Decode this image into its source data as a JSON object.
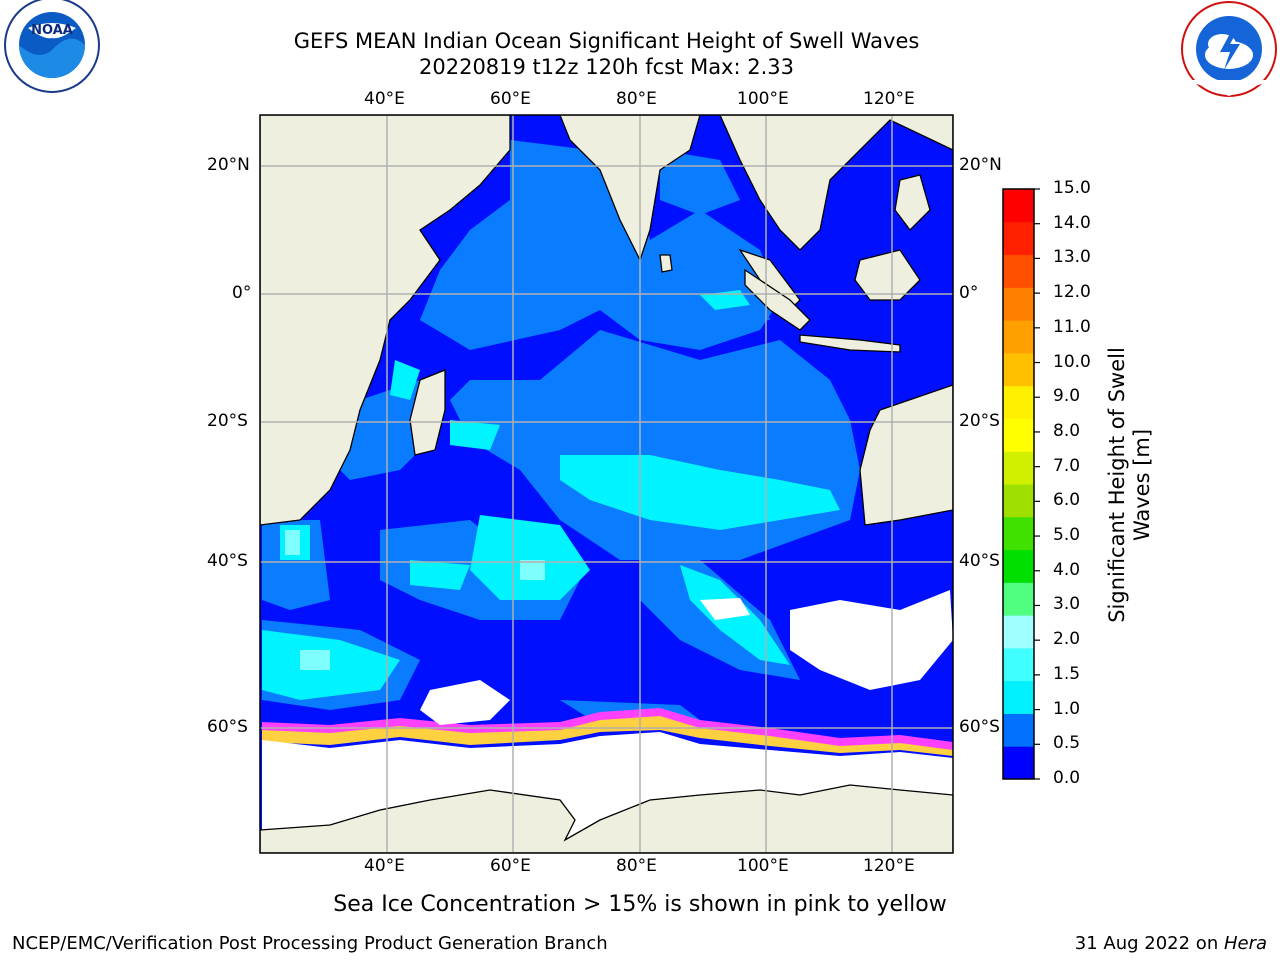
{
  "header": {
    "title_line1": "GEFS MEAN Indian Ocean Significant Height of Swell Waves",
    "title_line2": "20220819 t12z 120h fcst   Max: 2.33"
  },
  "logos": {
    "left": {
      "name": "noaa-logo",
      "text": "NOAA",
      "ring_text": "NATIONAL OCEANIC AND ATMOSPHERIC ADMINISTRATION · U.S. DEPARTMENT OF COMMERCE"
    },
    "right": {
      "name": "nws-logo",
      "ring_text": "NATIONAL WEATHER SERVICE"
    }
  },
  "map": {
    "lon_labels": [
      "40°E",
      "60°E",
      "80°E",
      "100°E",
      "120°E"
    ],
    "lat_labels": [
      "20°N",
      "0°",
      "20°S",
      "40°S",
      "60°S"
    ],
    "colors": {
      "land": "#efefdf",
      "ocean_deep": "#0010ff",
      "ocean_mid": "#0a7cff",
      "swell_high": "#00f4ff",
      "ice_pink": "#ff40ff",
      "ice_yellow": "#ffd040"
    }
  },
  "colorbar": {
    "title_line1": "Significant Height of Swell",
    "title_line2": "Waves [m]",
    "ticks": [
      "15.0",
      "14.0",
      "13.0",
      "12.0",
      "11.0",
      "10.0",
      "9.0",
      "8.0",
      "7.0",
      "6.0",
      "5.0",
      "4.0",
      "3.0",
      "2.0",
      "1.5",
      "1.0",
      "0.5",
      "0.0"
    ],
    "colors": [
      "#0000ff",
      "#0070ff",
      "#00f0ff",
      "#40ffff",
      "#a0ffff",
      "#50ff80",
      "#00e000",
      "#40e000",
      "#a0e000",
      "#d0f000",
      "#ffff00",
      "#fff000",
      "#ffc000",
      "#ffa000",
      "#ff8000",
      "#ff5000",
      "#ff2000",
      "#ff0000"
    ]
  },
  "caption": "Sea Ice Concentration > 15% is shown in pink to yellow",
  "footer": {
    "left": "NCEP/EMC/Verification Post Processing Product Generation Branch",
    "right_date": "31 Aug 2022 on ",
    "right_host": "Hera"
  }
}
